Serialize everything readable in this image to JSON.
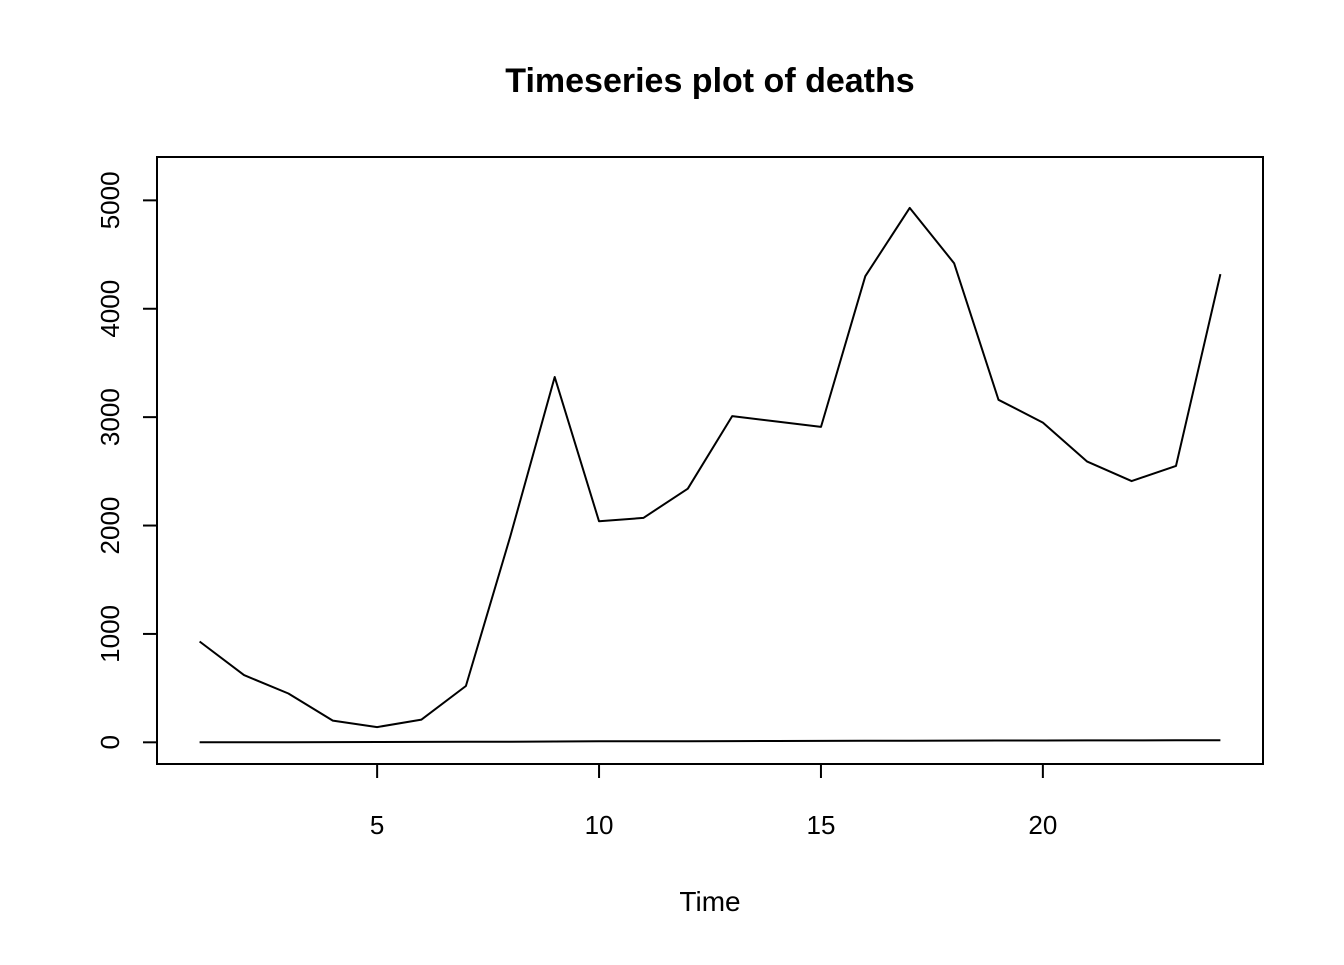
{
  "chart_data": {
    "type": "line",
    "title": "Timeseries plot of deaths",
    "xlabel": "Time",
    "ylabel": "",
    "xlim": [
      0.04,
      24.96
    ],
    "ylim": [
      -200,
      5400
    ],
    "x_ticks": [
      5,
      10,
      15,
      20
    ],
    "x_tick_labels": [
      "5",
      "10",
      "15",
      "20"
    ],
    "y_ticks": [
      0,
      1000,
      2000,
      3000,
      4000,
      5000
    ],
    "y_tick_labels": [
      "0",
      "1000",
      "2000",
      "3000",
      "4000",
      "5000"
    ],
    "grid": false,
    "legend": "none",
    "line_color": "#000000",
    "x": [
      1,
      2,
      3,
      4,
      5,
      6,
      7,
      8,
      9,
      10,
      11,
      12,
      13,
      14,
      15,
      16,
      17,
      18,
      19,
      20,
      21,
      22,
      23,
      24
    ],
    "series": [
      {
        "values": [
          930,
          620,
          450,
          200,
          140,
          210,
          520,
          1900,
          3370,
          2040,
          2070,
          2340,
          3010,
          2960,
          2910,
          4300,
          4930,
          4420,
          3160,
          2950,
          2590,
          2410,
          2550,
          4320
        ]
      },
      {
        "values": [
          0,
          0,
          1,
          2,
          3,
          4,
          5,
          6,
          8,
          9,
          10,
          10,
          11,
          12,
          13,
          14,
          15,
          16,
          17,
          17,
          18,
          18,
          19,
          20
        ]
      }
    ]
  }
}
